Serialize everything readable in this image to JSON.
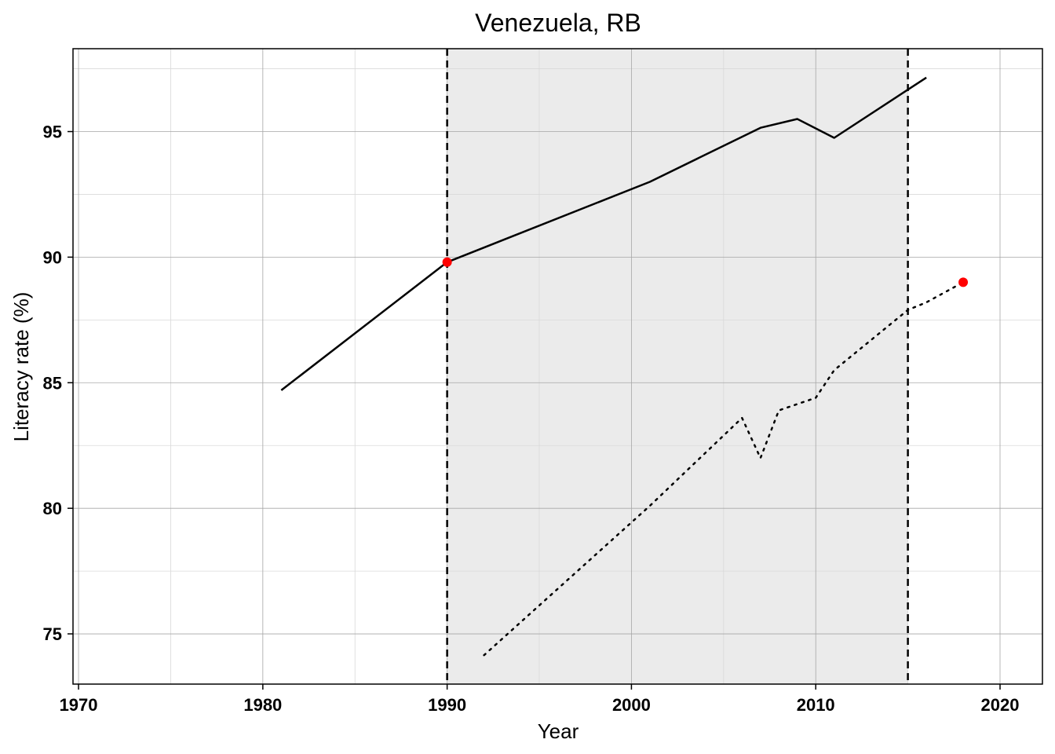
{
  "chart_data": {
    "type": "line",
    "title": "Venezuela, RB",
    "xlabel": "Year",
    "ylabel": "Literacy rate (%)",
    "xlim": [
      1969.7,
      2022.3
    ],
    "ylim": [
      73.0,
      98.3
    ],
    "x_ticks": [
      1970,
      1980,
      1990,
      2000,
      2010,
      2020
    ],
    "y_ticks": [
      75,
      80,
      85,
      90,
      95
    ],
    "x_minor_ticks": [
      1975,
      1985,
      1995,
      2005,
      2015
    ],
    "y_minor_ticks": [
      77.5,
      82.5,
      87.5,
      92.5,
      97.5
    ],
    "grid": true,
    "shaded_period": [
      1990,
      2015
    ],
    "vertical_markers": [
      1990,
      2015
    ],
    "series": [
      {
        "style": "solid",
        "color": "#000000",
        "points": [
          [
            1981,
            84.7
          ],
          [
            1990,
            89.8
          ],
          [
            2001,
            93.0
          ],
          [
            2007,
            95.15
          ],
          [
            2009,
            95.5
          ],
          [
            2011,
            94.75
          ],
          [
            2016,
            97.15
          ]
        ]
      },
      {
        "style": "dotted",
        "color": "#000000",
        "points": [
          [
            1992,
            74.15
          ],
          [
            2001,
            80.1
          ],
          [
            2006,
            83.6
          ],
          [
            2007,
            82.0
          ],
          [
            2008,
            83.9
          ],
          [
            2010,
            84.4
          ],
          [
            2011,
            85.5
          ],
          [
            2015,
            87.9
          ],
          [
            2016,
            88.2
          ],
          [
            2018,
            89.0
          ]
        ]
      }
    ],
    "highlight_points": [
      {
        "x": 1990,
        "y": 89.8,
        "color": "#ff0000"
      },
      {
        "x": 2018,
        "y": 89.0,
        "color": "#ff0000"
      }
    ]
  }
}
